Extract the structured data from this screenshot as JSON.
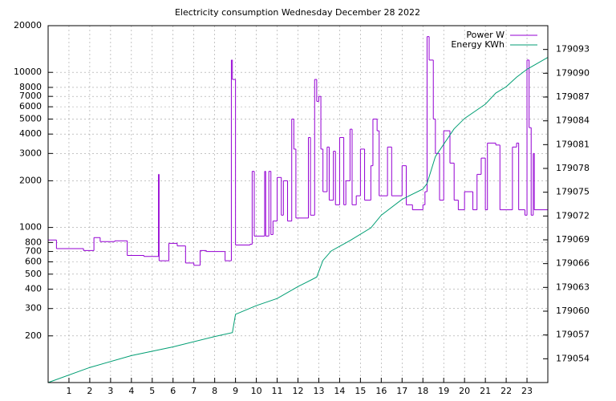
{
  "chart_data": {
    "type": "line",
    "title": "Electricity consumption Wednesday December 28 2022",
    "xlim": [
      0,
      24
    ],
    "xticks": [
      1,
      2,
      3,
      4,
      5,
      6,
      7,
      8,
      9,
      10,
      11,
      12,
      13,
      14,
      15,
      16,
      17,
      18,
      19,
      20,
      21,
      22,
      23
    ],
    "ylim": [
      100,
      20000
    ],
    "log_y": true,
    "yticks": [
      200,
      300,
      400,
      500,
      600,
      700,
      800,
      1000,
      2000,
      3000,
      4000,
      5000,
      6000,
      7000,
      8000,
      10000,
      20000
    ],
    "y2lim": [
      179051,
      179096
    ],
    "y2ticks": [
      179054,
      179057,
      179060,
      179063,
      179066,
      179069,
      179072,
      179075,
      179078,
      179081,
      179084,
      179087,
      179090,
      179093
    ],
    "grid": true,
    "legend": "top-right",
    "series": [
      {
        "name": "Power W",
        "color": "#9400d3",
        "step": true,
        "x": [
          0,
          0.4,
          1.7,
          2.2,
          2.5,
          3.2,
          3.8,
          4.6,
          5.3,
          5.33,
          5.8,
          6.2,
          6.6,
          7,
          7.3,
          7.6,
          8.5,
          8.8,
          8.85,
          9.0,
          9.7,
          9.8,
          9.9,
          10.4,
          10.45,
          10.6,
          10.7,
          10.8,
          11.0,
          11.2,
          11.3,
          11.5,
          11.7,
          11.8,
          11.9,
          12.5,
          12.6,
          12.8,
          12.9,
          13.0,
          13.1,
          13.2,
          13.4,
          13.5,
          13.7,
          13.8,
          14.0,
          14.2,
          14.3,
          14.5,
          14.6,
          14.8,
          15.0,
          15.2,
          15.5,
          15.6,
          15.8,
          15.9,
          16.3,
          16.5,
          17.0,
          17.2,
          17.5,
          18.0,
          18.1,
          18.2,
          18.3,
          18.5,
          18.6,
          18.8,
          19.0,
          19.3,
          19.5,
          19.7,
          20.0,
          20.4,
          20.6,
          20.8,
          21.0,
          21.1,
          21.5,
          21.7,
          22.0,
          22.3,
          22.5,
          22.6,
          22.9,
          23.0,
          23.1,
          23.2,
          23.3,
          23.35,
          23.96
        ],
        "values": [
          830,
          730,
          710,
          860,
          810,
          820,
          660,
          650,
          2200,
          610,
          790,
          760,
          590,
          570,
          710,
          700,
          610,
          12000,
          9000,
          770,
          780,
          2300,
          880,
          2300,
          880,
          2300,
          900,
          1100,
          2100,
          1200,
          2000,
          1100,
          5000,
          3200,
          1150,
          3800,
          1200,
          9000,
          6500,
          7000,
          3200,
          1700,
          3300,
          1500,
          3100,
          1400,
          3800,
          1400,
          2000,
          4300,
          1400,
          1600,
          3200,
          1500,
          2500,
          5000,
          4200,
          1600,
          3300,
          1600,
          2500,
          1400,
          1300,
          1400,
          1700,
          17000,
          12000,
          5000,
          3000,
          1500,
          4200,
          2600,
          1500,
          1300,
          1700,
          1300,
          2200,
          2800,
          1300,
          3500,
          3400,
          1300,
          1300,
          3300,
          3500,
          1300,
          1200,
          12000,
          4400,
          1200,
          3000,
          1300,
          1300
        ]
      },
      {
        "name": "Energy KWh",
        "color": "#009e73",
        "axis": "y2",
        "x": [
          0,
          2,
          4,
          6,
          8,
          8.85,
          9.0,
          10,
          11,
          12,
          12.9,
          13.2,
          13.6,
          14.5,
          15.5,
          16,
          17,
          18,
          18.2,
          18.6,
          19.5,
          20,
          21,
          21.5,
          22,
          22.5,
          23,
          24
        ],
        "values": [
          179051.0,
          179052.9,
          179054.4,
          179055.5,
          179056.8,
          179057.3,
          179059.6,
          179060.7,
          179061.6,
          179063.1,
          179064.3,
          179066.4,
          179067.6,
          179068.9,
          179070.5,
          179072.1,
          179074.1,
          179075.4,
          179076.1,
          179079.5,
          179083.0,
          179084.3,
          179086.1,
          179087.5,
          179088.3,
          179089.5,
          179090.5,
          179092.0
        ]
      }
    ]
  }
}
